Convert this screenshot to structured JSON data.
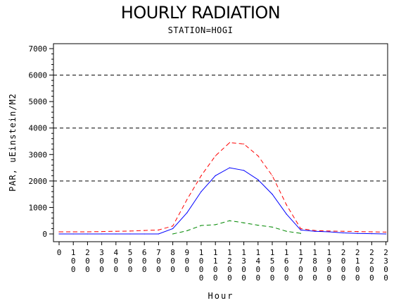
{
  "chart_data": {
    "type": "line",
    "title": "HOURLY RADIATION",
    "subtitle": "STATION=HOGI",
    "xlabel": "Hour",
    "ylabel": "PAR, uEinstein/M2",
    "ylim": [
      0,
      7000
    ],
    "y_ticks": [
      0,
      1000,
      2000,
      3000,
      4000,
      5000,
      6000,
      7000
    ],
    "reference_lines": [
      2000,
      4000,
      6000
    ],
    "categories": [
      "0",
      "100",
      "200",
      "300",
      "400",
      "500",
      "600",
      "700",
      "800",
      "900",
      "1000",
      "1100",
      "1200",
      "1300",
      "1400",
      "1500",
      "1600",
      "1700",
      "1800",
      "1900",
      "2000",
      "2100",
      "2200",
      "2300"
    ],
    "series": [
      {
        "color": "#ff0000",
        "style": "dashed",
        "values": [
          80,
          80,
          80,
          90,
          100,
          110,
          130,
          150,
          300,
          1300,
          2200,
          2950,
          3450,
          3400,
          2950,
          2200,
          1100,
          200,
          130,
          110,
          100,
          90,
          80,
          70
        ]
      },
      {
        "color": "#0000ff",
        "style": "solid",
        "values": [
          0,
          0,
          0,
          0,
          0,
          0,
          0,
          0,
          200,
          800,
          1600,
          2200,
          2500,
          2400,
          2050,
          1500,
          750,
          150,
          100,
          80,
          40,
          20,
          10,
          0
        ]
      },
      {
        "color": "#008800",
        "style": "dashed",
        "values": [
          null,
          null,
          null,
          null,
          null,
          null,
          null,
          null,
          0,
          120,
          320,
          350,
          500,
          420,
          330,
          260,
          100,
          20,
          null,
          null,
          null,
          null,
          null,
          null
        ]
      }
    ]
  }
}
